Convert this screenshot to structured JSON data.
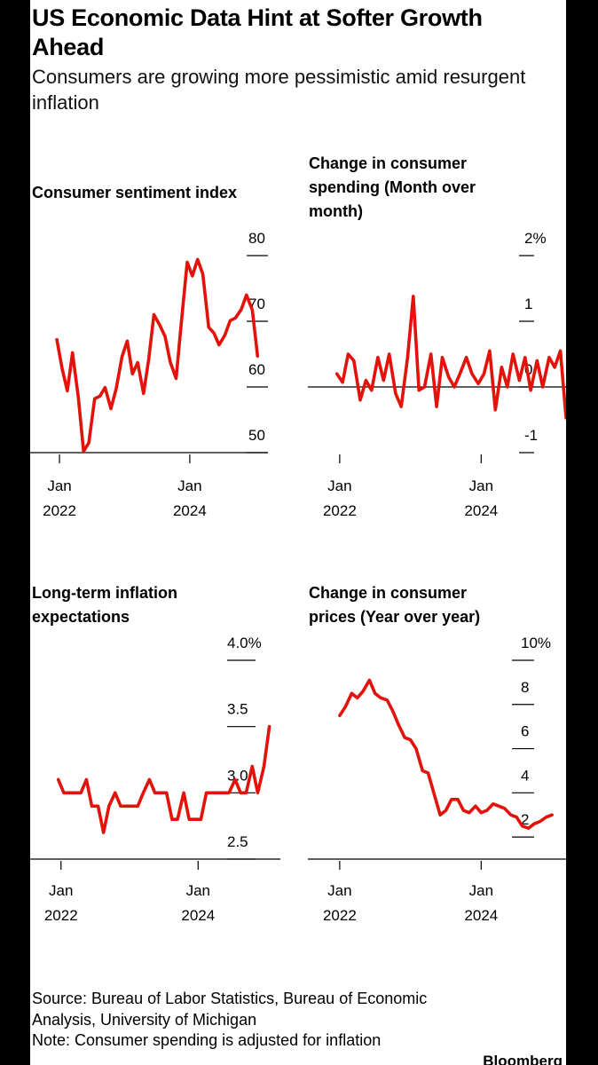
{
  "headline": "US Economic Data Hint at Softer Growth Ahead",
  "subhead": "Consumers are growing more pessimistic amid resurgent inflation",
  "footer": {
    "source": "Source: Bureau of Labor Statistics, Bureau of Economic Analysis, University of Michigan",
    "note": "Note: Consumer spending is adjusted for inflation",
    "brand": "Bloomberg"
  },
  "colors": {
    "line": "#e3120b",
    "axis": "#000000",
    "background": "#ffffff"
  },
  "chart_data": [
    {
      "id": "sentiment",
      "type": "line",
      "title_lines": [
        "Consumer sentiment index"
      ],
      "x_ticks": [
        {
          "value": 2022.0,
          "line1": "Jan",
          "line2": "2022"
        },
        {
          "value": 2024.0,
          "line1": "Jan",
          "line2": "2024"
        }
      ],
      "y_ticks": [
        {
          "value": 80,
          "label": "80"
        },
        {
          "value": 70,
          "label": "70"
        },
        {
          "value": 60,
          "label": "60"
        },
        {
          "value": 50,
          "label": "50"
        }
      ],
      "xlim": [
        2021.55,
        2025.2
      ],
      "ylim": [
        50,
        80
      ],
      "baseline": 50,
      "series": [
        {
          "values": [
            [
              2021.96,
              67.2
            ],
            [
              2022.04,
              62.8
            ],
            [
              2022.12,
              59.4
            ],
            [
              2022.2,
              65.2
            ],
            [
              2022.29,
              58.4
            ],
            [
              2022.37,
              50.2
            ],
            [
              2022.45,
              51.5
            ],
            [
              2022.54,
              58.2
            ],
            [
              2022.62,
              58.6
            ],
            [
              2022.7,
              59.9
            ],
            [
              2022.79,
              56.7
            ],
            [
              2022.87,
              59.7
            ],
            [
              2022.96,
              64.6
            ],
            [
              2023.04,
              67.0
            ],
            [
              2023.12,
              62.0
            ],
            [
              2023.2,
              63.7
            ],
            [
              2023.29,
              59.0
            ],
            [
              2023.37,
              64.2
            ],
            [
              2023.45,
              71.0
            ],
            [
              2023.54,
              69.4
            ],
            [
              2023.62,
              67.7
            ],
            [
              2023.7,
              63.8
            ],
            [
              2023.79,
              61.3
            ],
            [
              2023.87,
              69.7
            ],
            [
              2023.96,
              79.0
            ],
            [
              2024.04,
              76.9
            ],
            [
              2024.12,
              79.4
            ],
            [
              2024.2,
              77.2
            ],
            [
              2024.29,
              69.1
            ],
            [
              2024.37,
              68.2
            ],
            [
              2024.45,
              66.4
            ],
            [
              2024.54,
              67.9
            ],
            [
              2024.62,
              70.1
            ],
            [
              2024.7,
              70.5
            ],
            [
              2024.79,
              71.8
            ],
            [
              2024.87,
              74.0
            ],
            [
              2024.96,
              71.7
            ],
            [
              2025.04,
              64.7
            ]
          ]
        }
      ]
    },
    {
      "id": "spending",
      "type": "line",
      "title_lines": [
        "Change in consumer",
        "spending (Month over",
        "month)"
      ],
      "x_ticks": [
        {
          "value": 2022.0,
          "line1": "Jan",
          "line2": "2022"
        },
        {
          "value": 2024.0,
          "line1": "Jan",
          "line2": "2024"
        }
      ],
      "y_ticks": [
        {
          "value": 2,
          "label": "2%"
        },
        {
          "value": 1,
          "label": "1"
        },
        {
          "value": 0,
          "label": "0"
        },
        {
          "value": -1,
          "label": "-1"
        }
      ],
      "xlim": [
        2021.55,
        2025.2
      ],
      "ylim": [
        -1,
        2
      ],
      "baseline": 0,
      "series": [
        {
          "values": [
            [
              2021.96,
              0.2
            ],
            [
              2022.04,
              0.07
            ],
            [
              2022.12,
              0.5
            ],
            [
              2022.2,
              0.4
            ],
            [
              2022.29,
              -0.2
            ],
            [
              2022.37,
              0.1
            ],
            [
              2022.45,
              -0.05
            ],
            [
              2022.54,
              0.45
            ],
            [
              2022.62,
              0.1
            ],
            [
              2022.7,
              0.5
            ],
            [
              2022.79,
              -0.1
            ],
            [
              2022.87,
              -0.3
            ],
            [
              2022.96,
              0.45
            ],
            [
              2023.04,
              1.38
            ],
            [
              2023.12,
              -0.05
            ],
            [
              2023.2,
              0.0
            ],
            [
              2023.29,
              0.5
            ],
            [
              2023.37,
              -0.3
            ],
            [
              2023.45,
              0.45
            ],
            [
              2023.54,
              0.15
            ],
            [
              2023.62,
              0.0
            ],
            [
              2023.7,
              0.2
            ],
            [
              2023.79,
              0.45
            ],
            [
              2023.87,
              0.2
            ],
            [
              2023.96,
              0.05
            ],
            [
              2024.04,
              0.2
            ],
            [
              2024.12,
              0.55
            ],
            [
              2024.2,
              -0.35
            ],
            [
              2024.29,
              0.3
            ],
            [
              2024.37,
              0.0
            ],
            [
              2024.45,
              0.5
            ],
            [
              2024.54,
              0.1
            ],
            [
              2024.62,
              0.45
            ],
            [
              2024.7,
              -0.05
            ],
            [
              2024.79,
              0.4
            ],
            [
              2024.87,
              0.0
            ],
            [
              2024.96,
              0.45
            ],
            [
              2025.04,
              0.3
            ],
            [
              2025.12,
              0.55
            ],
            [
              2025.2,
              -0.47
            ]
          ]
        }
      ]
    },
    {
      "id": "inflation-expectations",
      "type": "line",
      "title_lines": [
        "Long-term inflation",
        "expectations"
      ],
      "x_ticks": [
        {
          "value": 2022.0,
          "line1": "Jan",
          "line2": "2022"
        },
        {
          "value": 2024.0,
          "line1": "Jan",
          "line2": "2024"
        }
      ],
      "y_ticks": [
        {
          "value": 4.0,
          "label": "4.0%"
        },
        {
          "value": 3.5,
          "label": "3.5"
        },
        {
          "value": 3.0,
          "label": "3.0"
        },
        {
          "value": 2.5,
          "label": "2.5"
        }
      ],
      "xlim": [
        2021.55,
        2025.2
      ],
      "ylim": [
        2.5,
        4.0
      ],
      "baseline": 2.5,
      "series": [
        {
          "values": [
            [
              2021.96,
              3.1
            ],
            [
              2022.04,
              3.0
            ],
            [
              2022.12,
              3.0
            ],
            [
              2022.2,
              3.0
            ],
            [
              2022.29,
              3.0
            ],
            [
              2022.37,
              3.1
            ],
            [
              2022.45,
              2.9
            ],
            [
              2022.54,
              2.9
            ],
            [
              2022.62,
              2.7
            ],
            [
              2022.7,
              2.9
            ],
            [
              2022.79,
              3.0
            ],
            [
              2022.87,
              2.9
            ],
            [
              2022.96,
              2.9
            ],
            [
              2023.04,
              2.9
            ],
            [
              2023.12,
              2.9
            ],
            [
              2023.2,
              3.0
            ],
            [
              2023.29,
              3.1
            ],
            [
              2023.37,
              3.0
            ],
            [
              2023.45,
              3.0
            ],
            [
              2023.54,
              3.0
            ],
            [
              2023.62,
              2.8
            ],
            [
              2023.7,
              2.8
            ],
            [
              2023.79,
              3.0
            ],
            [
              2023.87,
              2.8
            ],
            [
              2023.96,
              2.8
            ],
            [
              2024.04,
              2.8
            ],
            [
              2024.12,
              3.0
            ],
            [
              2024.2,
              3.0
            ],
            [
              2024.29,
              3.0
            ],
            [
              2024.37,
              3.0
            ],
            [
              2024.45,
              3.0
            ],
            [
              2024.54,
              3.1
            ],
            [
              2024.62,
              3.0
            ],
            [
              2024.7,
              3.0
            ],
            [
              2024.79,
              3.2
            ],
            [
              2024.87,
              3.0
            ],
            [
              2024.96,
              3.2
            ],
            [
              2025.04,
              3.5
            ]
          ]
        }
      ]
    },
    {
      "id": "cpi",
      "type": "line",
      "title_lines": [
        "Change in consumer",
        "prices (Year over year)"
      ],
      "x_ticks": [
        {
          "value": 2022.0,
          "line1": "Jan",
          "line2": "2022"
        },
        {
          "value": 2024.0,
          "line1": "Jan",
          "line2": "2024"
        }
      ],
      "y_ticks": [
        {
          "value": 10,
          "label": "10%"
        },
        {
          "value": 8,
          "label": "8"
        },
        {
          "value": 6,
          "label": "6"
        },
        {
          "value": 4,
          "label": "4"
        },
        {
          "value": 2,
          "label": "2"
        }
      ],
      "xlim": [
        2021.55,
        2025.2
      ],
      "ylim": [
        1,
        10
      ],
      "baseline": 1,
      "series": [
        {
          "values": [
            [
              2022.0,
              7.5
            ],
            [
              2022.08,
              7.9
            ],
            [
              2022.17,
              8.5
            ],
            [
              2022.25,
              8.3
            ],
            [
              2022.33,
              8.6
            ],
            [
              2022.42,
              9.1
            ],
            [
              2022.5,
              8.5
            ],
            [
              2022.58,
              8.3
            ],
            [
              2022.67,
              8.2
            ],
            [
              2022.75,
              7.7
            ],
            [
              2022.83,
              7.1
            ],
            [
              2022.92,
              6.5
            ],
            [
              2023.0,
              6.4
            ],
            [
              2023.08,
              6.0
            ],
            [
              2023.17,
              5.0
            ],
            [
              2023.25,
              4.9
            ],
            [
              2023.33,
              4.0
            ],
            [
              2023.42,
              3.0
            ],
            [
              2023.5,
              3.2
            ],
            [
              2023.58,
              3.7
            ],
            [
              2023.67,
              3.7
            ],
            [
              2023.75,
              3.2
            ],
            [
              2023.83,
              3.1
            ],
            [
              2023.92,
              3.4
            ],
            [
              2024.0,
              3.1
            ],
            [
              2024.08,
              3.2
            ],
            [
              2024.17,
              3.5
            ],
            [
              2024.25,
              3.4
            ],
            [
              2024.33,
              3.3
            ],
            [
              2024.42,
              3.0
            ],
            [
              2024.5,
              2.9
            ],
            [
              2024.58,
              2.5
            ],
            [
              2024.67,
              2.4
            ],
            [
              2024.75,
              2.6
            ],
            [
              2024.83,
              2.7
            ],
            [
              2024.92,
              2.9
            ],
            [
              2025.0,
              3.0
            ]
          ]
        }
      ]
    }
  ]
}
